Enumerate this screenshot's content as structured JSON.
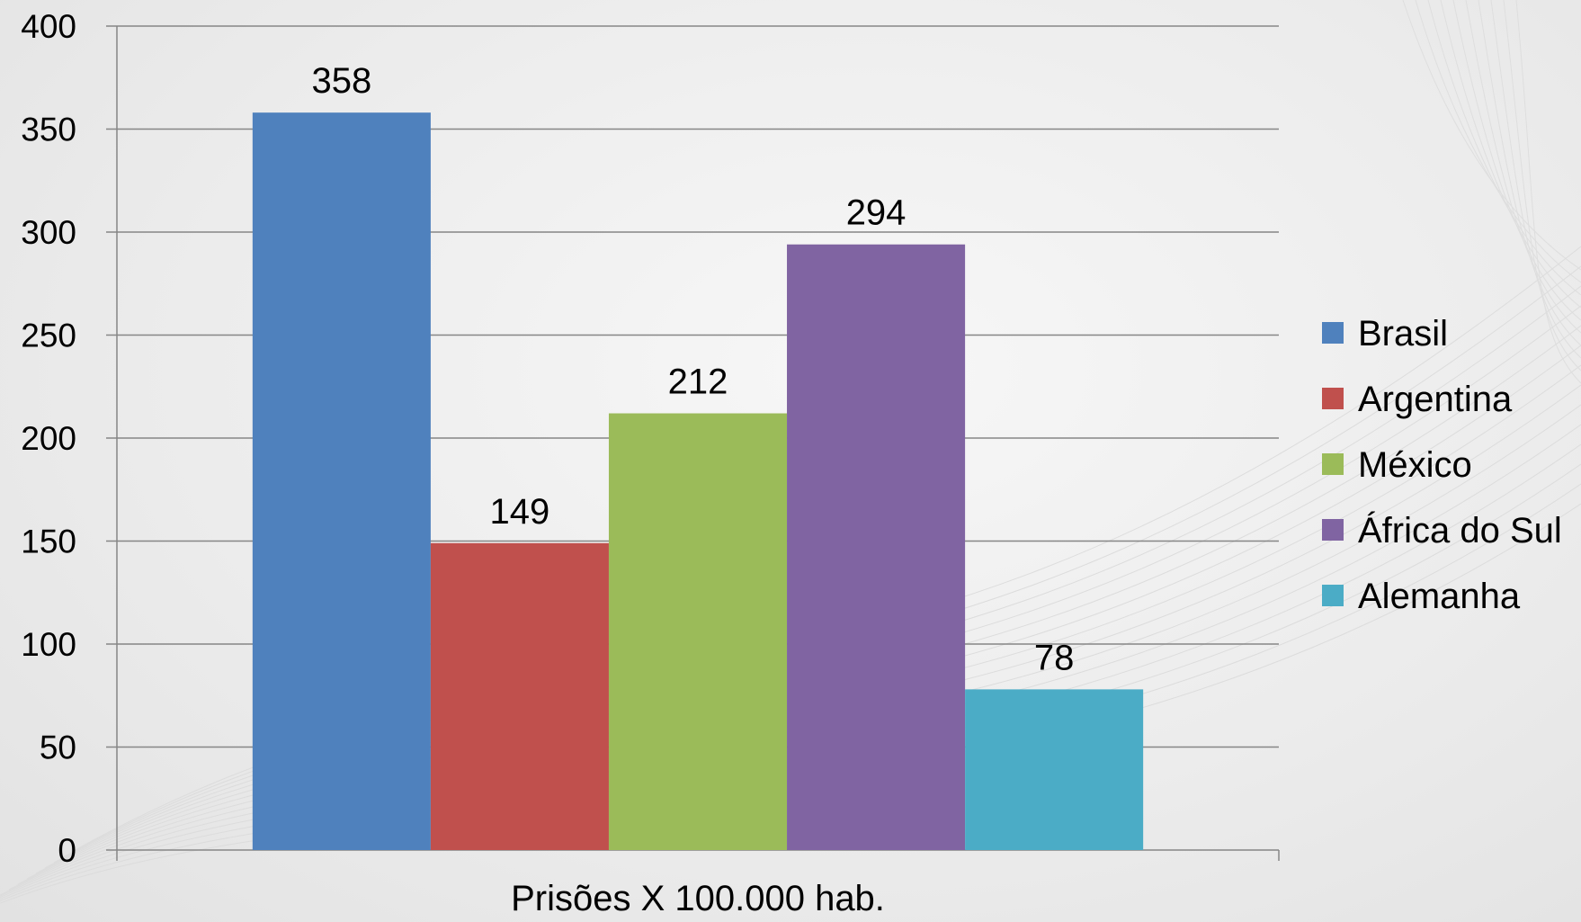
{
  "chart_data": {
    "type": "bar",
    "xlabel": "Prisões X 100.000 hab.",
    "ylabel": "",
    "ylim": [
      0,
      400
    ],
    "yticks": [
      0,
      50,
      100,
      150,
      200,
      250,
      300,
      350,
      400
    ],
    "grid": true,
    "legend_position": "right",
    "categories": [
      "Prisões X 100.000 hab."
    ],
    "series": [
      {
        "name": "Brasil",
        "values": [
          358
        ],
        "color": "#4F81BD"
      },
      {
        "name": "Argentina",
        "values": [
          149
        ],
        "color": "#C0504D"
      },
      {
        "name": "México",
        "values": [
          212
        ],
        "color": "#9BBB59"
      },
      {
        "name": "África do Sul",
        "values": [
          294
        ],
        "color": "#8064A2"
      },
      {
        "name": "Alemanha",
        "values": [
          78
        ],
        "color": "#4BACC6"
      }
    ],
    "data_labels": [
      "358",
      "149",
      "212",
      "294",
      "78"
    ]
  }
}
